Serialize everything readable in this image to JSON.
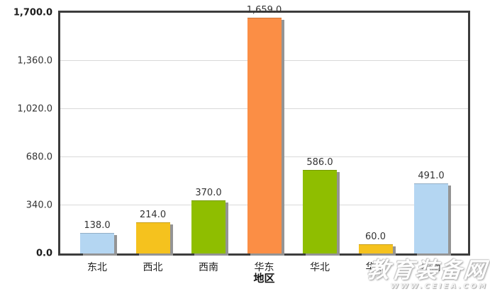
{
  "chart_data": {
    "type": "bar",
    "title": "",
    "xlabel": "地区",
    "ylabel": "",
    "ylim": [
      0,
      1700
    ],
    "ytick_interval": 340,
    "grid": true,
    "legend": false,
    "yticks_bottom_to_top": [
      "0.0",
      "340.0",
      "680.0",
      "1,020.0",
      "1,360.0",
      "1,700.0"
    ],
    "categories": [
      "东北",
      "西北",
      "西南",
      "华东",
      "华北",
      "华中",
      "华南"
    ],
    "values": [
      138,
      214,
      370,
      1659,
      586,
      60,
      491
    ],
    "value_labels": [
      "138.0",
      "214.0",
      "370.0",
      "1,659.0",
      "586.0",
      "60.0",
      "491.0"
    ],
    "bar_colors": [
      "#B4D6F2",
      "#F5C21E",
      "#8FBE00",
      "#FB8E45",
      "#8FBE00",
      "#F5C21E",
      "#B4D6F2"
    ],
    "colors": {
      "axis_frame": "#3c3c3c",
      "gridline": "#d9d9d9",
      "bar_shadow": "#949494",
      "text": "#333333",
      "background": "#ffffff"
    }
  },
  "watermark": {
    "name": "教育装备网",
    "url_text": "WWW.CEIEA.COM"
  }
}
